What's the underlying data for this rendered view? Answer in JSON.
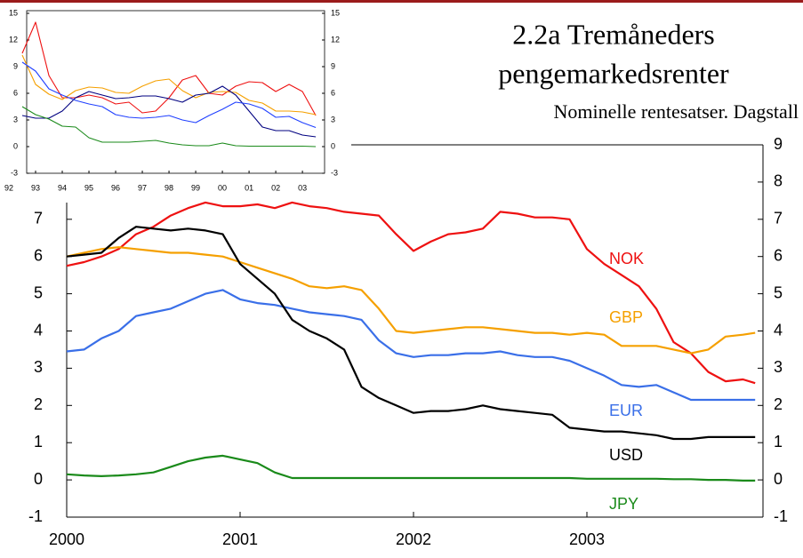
{
  "chart_data": [
    {
      "type": "line",
      "title": [
        "2.2a Tremåneders",
        "pengemarkedsrenter"
      ],
      "subtitle": "Nominelle rentesatser. Dagstall",
      "x": [
        2000.0,
        2000.1,
        2000.2,
        2000.3,
        2000.4,
        2000.5,
        2000.6,
        2000.7,
        2000.8,
        2000.9,
        2001.0,
        2001.1,
        2001.2,
        2001.3,
        2001.4,
        2001.5,
        2001.6,
        2001.7,
        2001.8,
        2001.9,
        2002.0,
        2002.1,
        2002.2,
        2002.3,
        2002.4,
        2002.5,
        2002.6,
        2002.7,
        2002.8,
        2002.9,
        2003.0,
        2003.1,
        2003.2,
        2003.3,
        2003.4,
        2003.5,
        2003.6,
        2003.7,
        2003.8,
        2003.9,
        2003.97
      ],
      "xlim": [
        2000,
        2004
      ],
      "xticks": [
        2000,
        2001,
        2002,
        2003
      ],
      "ylim": [
        -1,
        9
      ],
      "yticks": [
        -1,
        0,
        1,
        2,
        3,
        4,
        5,
        6,
        7
      ],
      "y2lim": [
        -1,
        9
      ],
      "y2ticks": [
        -1,
        0,
        1,
        2,
        3,
        4,
        5,
        6,
        7,
        8,
        9
      ],
      "series": [
        {
          "name": "NOK",
          "color": "#ee1111",
          "values": [
            5.75,
            5.85,
            6.0,
            6.2,
            6.6,
            6.8,
            7.1,
            7.3,
            7.45,
            7.35,
            7.35,
            7.4,
            7.3,
            7.45,
            7.35,
            7.3,
            7.2,
            7.15,
            7.1,
            6.6,
            6.15,
            6.4,
            6.6,
            6.65,
            6.75,
            7.2,
            7.15,
            7.05,
            7.05,
            7.0,
            6.2,
            5.8,
            5.5,
            5.2,
            4.6,
            3.7,
            3.4,
            2.9,
            2.65,
            2.7,
            2.6
          ]
        },
        {
          "name": "GBP",
          "color": "#f5a000",
          "values": [
            6.0,
            6.1,
            6.2,
            6.25,
            6.2,
            6.15,
            6.1,
            6.1,
            6.05,
            6.0,
            5.85,
            5.7,
            5.55,
            5.4,
            5.2,
            5.15,
            5.2,
            5.1,
            4.6,
            4.0,
            3.95,
            4.0,
            4.05,
            4.1,
            4.1,
            4.05,
            4.0,
            3.95,
            3.95,
            3.9,
            3.95,
            3.9,
            3.6,
            3.6,
            3.6,
            3.5,
            3.4,
            3.5,
            3.85,
            3.9,
            3.95
          ]
        },
        {
          "name": "EUR",
          "color": "#3a6fe8",
          "values": [
            3.45,
            3.5,
            3.8,
            4.0,
            4.4,
            4.5,
            4.6,
            4.8,
            5.0,
            5.1,
            4.85,
            4.75,
            4.7,
            4.6,
            4.5,
            4.45,
            4.4,
            4.3,
            3.75,
            3.4,
            3.3,
            3.35,
            3.35,
            3.4,
            3.4,
            3.45,
            3.35,
            3.3,
            3.3,
            3.2,
            3.0,
            2.8,
            2.55,
            2.5,
            2.55,
            2.35,
            2.15,
            2.15,
            2.15,
            2.15,
            2.15
          ]
        },
        {
          "name": "USD",
          "color": "#000000",
          "values": [
            6.0,
            6.05,
            6.1,
            6.5,
            6.8,
            6.75,
            6.7,
            6.75,
            6.7,
            6.6,
            5.8,
            5.4,
            5.0,
            4.3,
            4.0,
            3.8,
            3.5,
            2.5,
            2.2,
            2.0,
            1.8,
            1.85,
            1.85,
            1.9,
            2.0,
            1.9,
            1.85,
            1.8,
            1.75,
            1.4,
            1.35,
            1.3,
            1.3,
            1.25,
            1.2,
            1.1,
            1.1,
            1.15,
            1.15,
            1.15,
            1.15
          ]
        },
        {
          "name": "JPY",
          "color": "#1a8a1a",
          "values": [
            0.15,
            0.12,
            0.1,
            0.12,
            0.15,
            0.2,
            0.35,
            0.5,
            0.6,
            0.65,
            0.55,
            0.45,
            0.2,
            0.05,
            0.05,
            0.05,
            0.05,
            0.05,
            0.05,
            0.05,
            0.05,
            0.05,
            0.05,
            0.05,
            0.05,
            0.05,
            0.05,
            0.05,
            0.05,
            0.05,
            0.03,
            0.03,
            0.03,
            0.03,
            0.03,
            0.02,
            0.02,
            0.0,
            0.0,
            -0.02,
            -0.02
          ]
        }
      ]
    },
    {
      "type": "line",
      "x": [
        1992.5,
        1993.0,
        1993.5,
        1994.0,
        1994.5,
        1995.0,
        1995.5,
        1996.0,
        1996.5,
        1997.0,
        1997.5,
        1998.0,
        1998.5,
        1999.0,
        1999.5,
        2000.0,
        2000.5,
        2001.0,
        2001.5,
        2002.0,
        2002.5,
        2003.0,
        2003.5
      ],
      "xlim": [
        1992,
        2003.83
      ],
      "xticks": [
        {
          "value": 1992,
          "label": "92"
        },
        {
          "value": 1993,
          "label": "93"
        },
        {
          "value": 1994,
          "label": "94"
        },
        {
          "value": 1995,
          "label": "95"
        },
        {
          "value": 1996,
          "label": "96"
        },
        {
          "value": 1997,
          "label": "97"
        },
        {
          "value": 1998,
          "label": "98"
        },
        {
          "value": 1999,
          "label": "99"
        },
        {
          "value": 2000,
          "label": "00"
        },
        {
          "value": 2001,
          "label": "01"
        },
        {
          "value": 2002,
          "label": "02"
        },
        {
          "value": 2003,
          "label": "03"
        }
      ],
      "ylim": [
        -3,
        15
      ],
      "yticks": [
        -3,
        0,
        3,
        6,
        9,
        12,
        15
      ],
      "y2lim": [
        -3,
        15
      ],
      "y2ticks": [
        -3,
        0,
        3,
        6,
        9,
        12,
        15
      ],
      "series": [
        {
          "color": "#ee1111",
          "values": [
            10.5,
            14,
            8,
            5.5,
            5.5,
            5.8,
            5.5,
            4.8,
            5.0,
            3.8,
            4.0,
            5.5,
            7.5,
            8.0,
            6.0,
            5.8,
            6.8,
            7.3,
            7.2,
            6.2,
            7.0,
            6.2,
            3.5
          ]
        },
        {
          "color": "#f5a000",
          "values": [
            10.3,
            7.0,
            5.9,
            5.3,
            6.3,
            6.7,
            6.6,
            6.1,
            6.0,
            6.8,
            7.4,
            7.6,
            6.3,
            5.5,
            6.1,
            6.2,
            6.1,
            5.2,
            4.9,
            4.0,
            4.0,
            3.9,
            3.6
          ]
        },
        {
          "color": "#000080",
          "values": [
            3.5,
            3.2,
            3.2,
            4.0,
            5.5,
            6.2,
            5.8,
            5.4,
            5.5,
            5.7,
            5.7,
            5.4,
            5.0,
            5.8,
            6.0,
            6.8,
            5.8,
            4.0,
            2.2,
            1.8,
            1.8,
            1.3,
            1.1
          ]
        },
        {
          "color": "#2040ff",
          "values": [
            9.5,
            8.5,
            6.5,
            5.8,
            5.2,
            4.8,
            4.5,
            3.6,
            3.3,
            3.2,
            3.3,
            3.5,
            3.0,
            2.7,
            3.5,
            4.2,
            5.0,
            4.8,
            4.3,
            3.3,
            3.4,
            2.7,
            2.15
          ]
        },
        {
          "color": "#1a8a1a",
          "values": [
            4.5,
            3.6,
            3.1,
            2.3,
            2.2,
            1.0,
            0.5,
            0.5,
            0.5,
            0.6,
            0.7,
            0.4,
            0.2,
            0.1,
            0.1,
            0.4,
            0.1,
            0.05,
            0.05,
            0.05,
            0.05,
            0.05,
            0.0
          ]
        }
      ]
    }
  ]
}
